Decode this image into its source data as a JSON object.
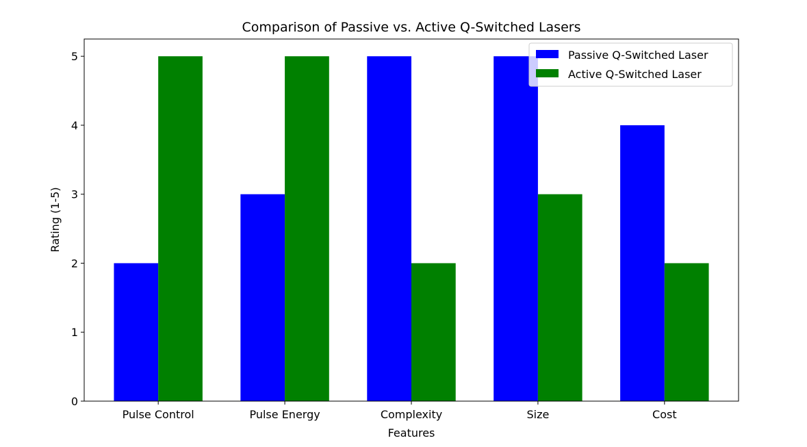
{
  "chart_data": {
    "type": "bar",
    "title": "Comparison of Passive vs. Active Q-Switched Lasers",
    "xlabel": "Features",
    "ylabel": "Rating (1-5)",
    "categories": [
      "Pulse Control",
      "Pulse Energy",
      "Complexity",
      "Size",
      "Cost"
    ],
    "series": [
      {
        "name": "Passive Q-Switched Laser",
        "values": [
          2,
          3,
          5,
          5,
          4
        ],
        "color": "#0000ff"
      },
      {
        "name": "Active Q-Switched Laser",
        "values": [
          5,
          5,
          2,
          3,
          2
        ],
        "color": "#008000"
      }
    ],
    "ylim": [
      0,
      5.25
    ],
    "yticks": [
      0,
      1,
      2,
      3,
      4,
      5
    ],
    "bar_width": 0.35,
    "grid": false,
    "legend": "top-right"
  }
}
